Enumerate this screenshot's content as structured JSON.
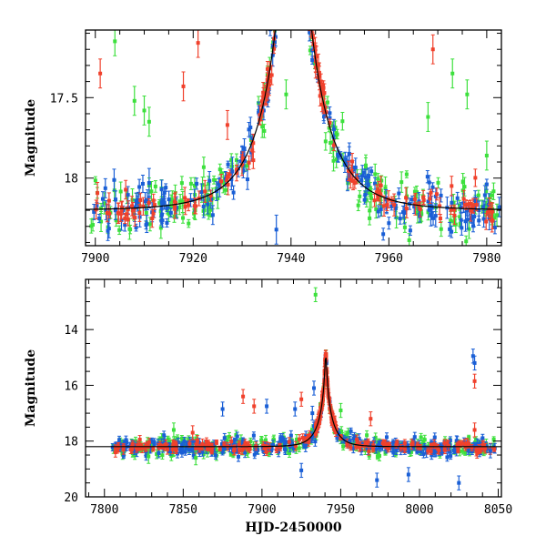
{
  "colors": {
    "red": "#f0412c",
    "blue": "#1a5fd6",
    "green": "#3de03d",
    "model": "#000000"
  },
  "chart_data": [
    {
      "type": "scatter",
      "title": "",
      "xlabel": "",
      "ylabel": "Magnitude",
      "xlim": [
        7898,
        7983
      ],
      "ylim": [
        18.42,
        17.08
      ],
      "y_inverted": true,
      "x_ticks": [
        "7900",
        "7920",
        "7940",
        "7960",
        "7980"
      ],
      "y_ticks": [
        "17.5",
        "18"
      ],
      "series": [
        {
          "color": "red",
          "baseline": 18.2,
          "spread": 0.06
        },
        {
          "color": "blue",
          "baseline": 18.2,
          "spread": 0.07
        },
        {
          "color": "green",
          "baseline": 18.2,
          "spread": 0.09
        }
      ],
      "model_curve": {
        "t0": 7940.5,
        "u0": 0.05,
        "tE": 10,
        "baseline": 18.2
      },
      "outliers": [
        {
          "color": "red",
          "x": 7901,
          "y": 17.35
        },
        {
          "color": "red",
          "x": 7918,
          "y": 17.43
        },
        {
          "color": "red",
          "x": 7921,
          "y": 17.16
        },
        {
          "color": "red",
          "x": 7927,
          "y": 17.67
        },
        {
          "color": "red",
          "x": 7945,
          "y": 17.25
        },
        {
          "color": "red",
          "x": 7969,
          "y": 17.2
        },
        {
          "color": "blue",
          "x": 7911,
          "y": 18.03
        },
        {
          "color": "blue",
          "x": 7928,
          "y": 17.96
        },
        {
          "color": "blue",
          "x": 7937,
          "y": 18.32
        },
        {
          "color": "green",
          "x": 7904,
          "y": 17.15
        },
        {
          "color": "green",
          "x": 7908,
          "y": 17.52
        },
        {
          "color": "green",
          "x": 7910,
          "y": 17.58
        },
        {
          "color": "green",
          "x": 7911,
          "y": 17.65
        },
        {
          "color": "green",
          "x": 7939,
          "y": 17.48
        },
        {
          "color": "green",
          "x": 7968,
          "y": 17.62
        },
        {
          "color": "green",
          "x": 7973,
          "y": 17.35
        },
        {
          "color": "green",
          "x": 7976,
          "y": 17.48
        },
        {
          "color": "green",
          "x": 7980,
          "y": 17.86
        }
      ]
    },
    {
      "type": "scatter",
      "title": "",
      "xlabel": "HJD-2450000",
      "ylabel": "Magnitude",
      "xlim": [
        7788,
        8052
      ],
      "ylim": [
        20,
        12.2
      ],
      "y_inverted": true,
      "x_ticks": [
        "7800",
        "7850",
        "7900",
        "7950",
        "8000",
        "8050"
      ],
      "y_ticks": [
        "14",
        "16",
        "18",
        "20"
      ],
      "series": [
        {
          "color": "red",
          "baseline": 18.2,
          "spread": 0.12
        },
        {
          "color": "blue",
          "baseline": 18.2,
          "spread": 0.14
        },
        {
          "color": "green",
          "baseline": 18.2,
          "spread": 0.16
        }
      ],
      "model_curve": {
        "t0": 7940.5,
        "u0": 0.05,
        "tE": 10,
        "baseline": 18.2
      },
      "outliers": [
        {
          "color": "green",
          "x": 7934,
          "y": 12.75
        },
        {
          "color": "blue",
          "x": 8035,
          "y": 15.2
        },
        {
          "color": "blue",
          "x": 8034,
          "y": 14.95
        },
        {
          "color": "red",
          "x": 8035,
          "y": 15.85
        },
        {
          "color": "blue",
          "x": 7933,
          "y": 16.1
        },
        {
          "color": "red",
          "x": 7888,
          "y": 16.4
        },
        {
          "color": "red",
          "x": 7925,
          "y": 16.5
        },
        {
          "color": "blue",
          "x": 7875,
          "y": 16.85
        },
        {
          "color": "red",
          "x": 7895,
          "y": 16.75
        },
        {
          "color": "blue",
          "x": 7903,
          "y": 16.75
        },
        {
          "color": "blue",
          "x": 7921,
          "y": 16.85
        },
        {
          "color": "green",
          "x": 7950,
          "y": 16.9
        },
        {
          "color": "red",
          "x": 7969,
          "y": 17.2
        },
        {
          "color": "blue",
          "x": 7932,
          "y": 17.0
        },
        {
          "color": "red",
          "x": 7856,
          "y": 17.7
        },
        {
          "color": "green",
          "x": 7844,
          "y": 17.6
        },
        {
          "color": "red",
          "x": 8035,
          "y": 17.6
        },
        {
          "color": "blue",
          "x": 7925,
          "y": 19.05
        },
        {
          "color": "blue",
          "x": 7973,
          "y": 19.4
        },
        {
          "color": "blue",
          "x": 7993,
          "y": 19.2
        },
        {
          "color": "blue",
          "x": 8025,
          "y": 19.5
        },
        {
          "color": "green",
          "x": 7858,
          "y": 18.6
        },
        {
          "color": "green",
          "x": 7828,
          "y": 18.55
        },
        {
          "color": "blue",
          "x": 8045,
          "y": 18.35
        }
      ]
    }
  ]
}
